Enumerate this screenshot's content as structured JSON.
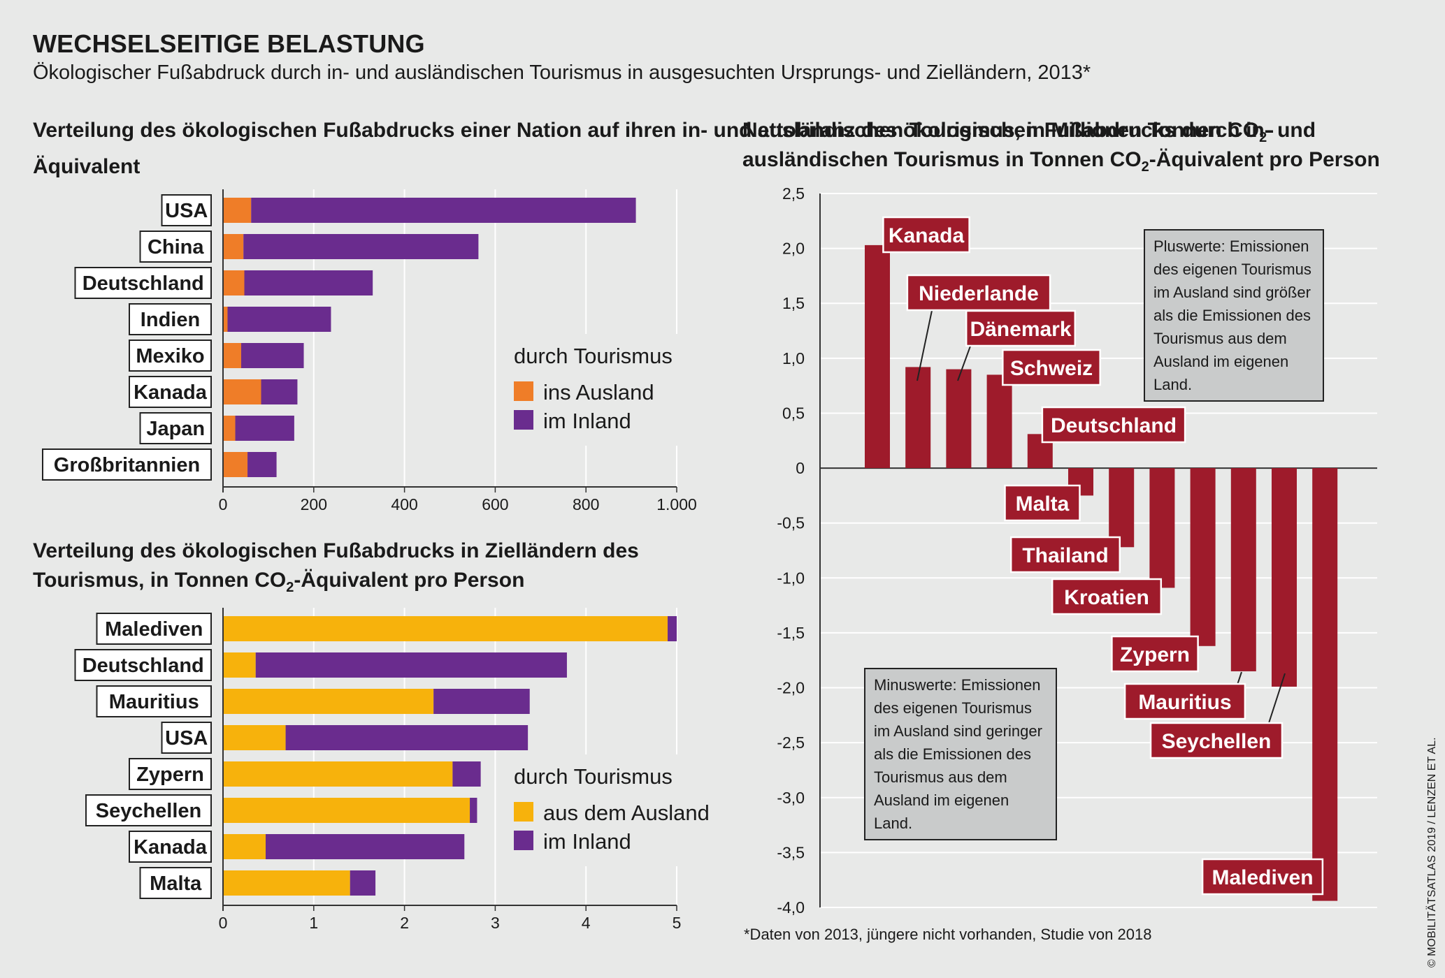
{
  "title": "WECHSELSEITIGE BELASTUNG",
  "subtitle": "Ökologischer Fußabdruck durch in- und ausländischen Tourismus in ausgesuchten Ursprungs- und Zielländern, 2013*",
  "colors": {
    "orange": "#ef7d28",
    "purple": "#6a2c8e",
    "yellow": "#f7b20c",
    "red": "#9e1b2b",
    "background": "#e8e9e8"
  },
  "footnote": "*Daten von 2013, jüngere nicht vorhanden, Studie von 2018",
  "credit": "MOBILITÄTSATLAS 2019 / LENZEN ET AL.",
  "notes": {
    "plus": "Pluswerte: Emissionen des eigenen Tourismus im Ausland sind größer als die Emissionen des Tourismus aus dem Ausland im eigenen Land.",
    "minus": "Minuswerte: Emissionen des eigenen Tourismus im Ausland sind geringer als die Emissionen des Tourismus aus dem Ausland im eigenen Land."
  },
  "chart_data": [
    {
      "type": "bar",
      "orientation": "horizontal",
      "stacked": true,
      "title": "Verteilung des ökologischen Fußabdrucks einer Nation auf ihren in- und ausländischen Tourismus, in Millionen Tonnen CO",
      "title_sub": "2",
      "title_end": "-Äquivalent",
      "categories": [
        "USA",
        "China",
        "Deutschland",
        "Indien",
        "Mexiko",
        "Kanada",
        "Japan",
        "Großbritannien"
      ],
      "series": [
        {
          "name": "ins Ausland",
          "color": "#ef7d28",
          "values": [
            62,
            45,
            47,
            10,
            40,
            84,
            27,
            54
          ]
        },
        {
          "name": "im Inland",
          "color": "#6a2c8e",
          "values": [
            848,
            518,
            283,
            228,
            138,
            80,
            130,
            64
          ]
        }
      ],
      "xlim": [
        0,
        1000
      ],
      "xticks": [
        0,
        200,
        400,
        600,
        800,
        1000
      ],
      "xtick_labels": [
        "0",
        "200",
        "400",
        "600",
        "800",
        "1.000"
      ],
      "legend_title": "durch Tourismus",
      "legend_position": "right"
    },
    {
      "type": "bar",
      "orientation": "horizontal",
      "stacked": true,
      "title": "Verteilung des ökologischen Fußabdrucks in Zielländern des Tourismus, in Tonnen CO",
      "title_sub": "2",
      "title_end": "-Äquivalent pro Person",
      "categories": [
        "Malediven",
        "Deutschland",
        "Mauritius",
        "USA",
        "Zypern",
        "Seychellen",
        "Kanada",
        "Malta"
      ],
      "series": [
        {
          "name": "aus dem Ausland",
          "color": "#f7b20c",
          "values": [
            4.9,
            0.36,
            2.32,
            0.69,
            2.53,
            2.72,
            0.47,
            1.4
          ]
        },
        {
          "name": "im Inland",
          "color": "#6a2c8e",
          "values": [
            0.1,
            3.43,
            1.06,
            2.67,
            0.31,
            0.08,
            2.19,
            0.28
          ]
        }
      ],
      "xlim": [
        0,
        5
      ],
      "xticks": [
        0,
        1,
        2,
        3,
        4,
        5
      ],
      "xtick_labels": [
        "0",
        "1",
        "2",
        "3",
        "4",
        "5"
      ],
      "legend_title": "durch Tourismus",
      "legend_position": "right"
    },
    {
      "type": "bar",
      "orientation": "vertical",
      "title": "Nettobilanz des ökologischen Fußabdrucks durch in- und ausländischen Tourismus in Tonnen CO",
      "title_sub": "2",
      "title_end": "-Äquivalent pro Person",
      "categories": [
        "Kanada",
        "Niederlande",
        "Dänemark",
        "Schweiz",
        "Deutschland",
        "Malta",
        "Thailand",
        "Kroatien",
        "Zypern",
        "Mauritius",
        "Seychellen",
        "Malediven"
      ],
      "values": [
        2.03,
        0.92,
        0.9,
        0.85,
        0.31,
        -0.25,
        -0.72,
        -1.09,
        -1.62,
        -1.85,
        -1.99,
        -3.94
      ],
      "color": "#9e1b2b",
      "ylim": [
        -4.0,
        2.5
      ],
      "yticks": [
        2.5,
        2.0,
        1.5,
        1.0,
        0.5,
        0,
        -0.5,
        -1.0,
        -1.5,
        -2.0,
        -2.5,
        -3.0,
        -3.5,
        -4.0
      ],
      "ytick_labels": [
        "2,5",
        "2,0",
        "1,5",
        "1,0",
        "0,5",
        "0",
        "-0,5",
        "-1,0",
        "-1,5",
        "-2,0",
        "-2,5",
        "-3,0",
        "-3,5",
        "-4,0"
      ],
      "grid": true
    }
  ]
}
